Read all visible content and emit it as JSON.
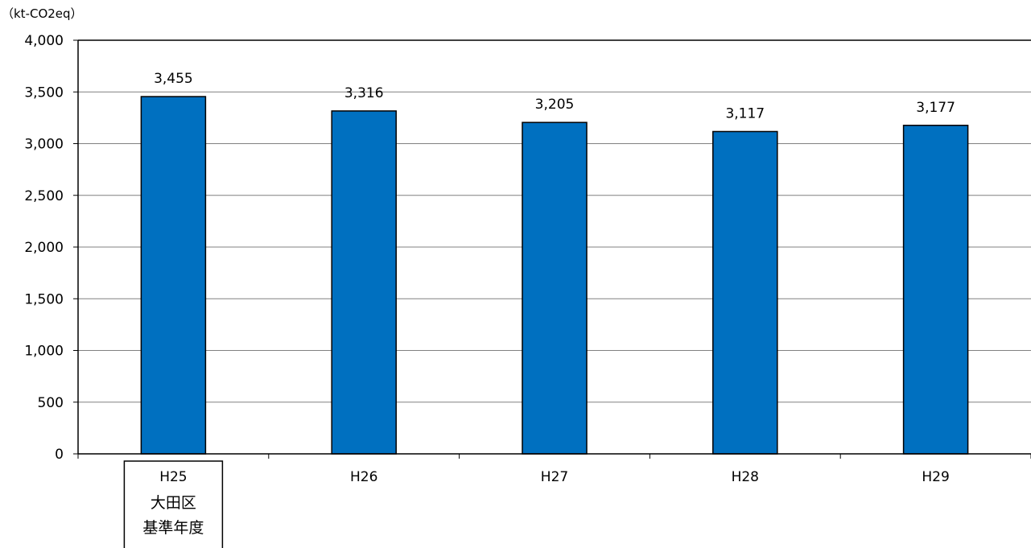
{
  "chart_data": {
    "type": "bar",
    "unit_label": "（kt-CO2eq）",
    "categories": [
      "H25",
      "H26",
      "H27",
      "H28",
      "H29"
    ],
    "values": [
      3455,
      3316,
      3205,
      3117,
      3177
    ],
    "data_labels": [
      "3,455",
      "3,316",
      "3,205",
      "3,117",
      "3,177"
    ],
    "ylim": [
      0,
      4000
    ],
    "yticks": [
      0,
      500,
      1000,
      1500,
      2000,
      2500,
      3000,
      3500,
      4000
    ],
    "ytick_labels": [
      "0",
      "500",
      "1,000",
      "1,500",
      "2,000",
      "2,500",
      "3,000",
      "3,500",
      "4,000"
    ],
    "grid": true,
    "bar_color": "#0070C0",
    "highlight_category_index": 0,
    "highlight_note_lines": [
      "大田区",
      "基準年度"
    ]
  }
}
